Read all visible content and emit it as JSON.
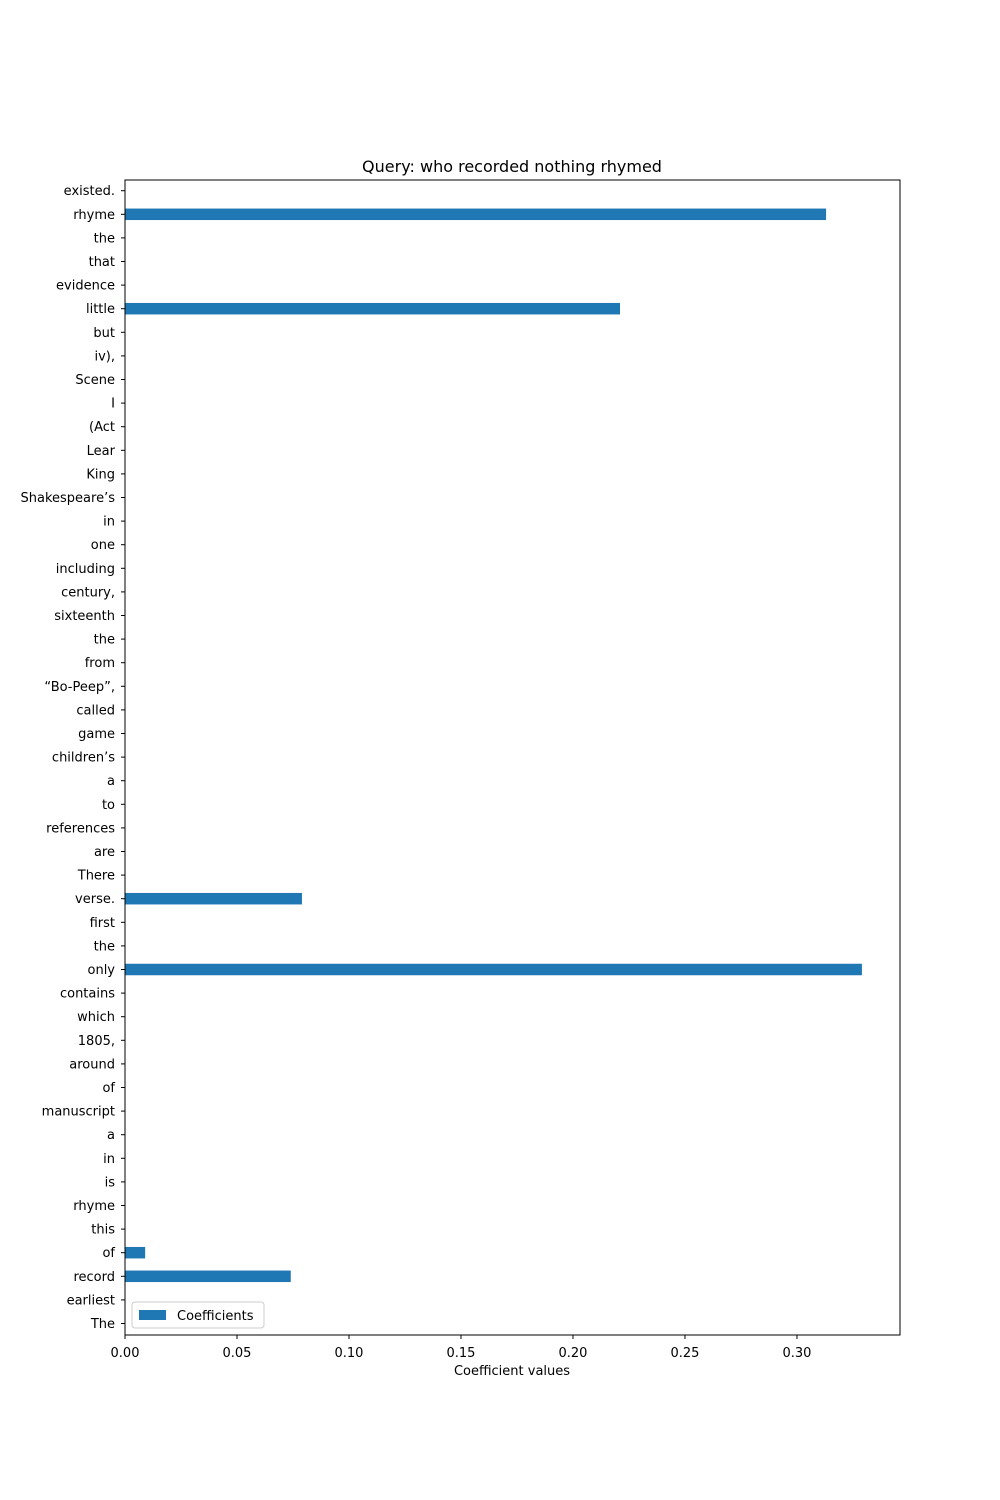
{
  "chart_data": {
    "type": "bar",
    "orientation": "horizontal",
    "title": "Query: who recorded nothing rhymed",
    "xlabel": "Coefficient values",
    "ylabel": "",
    "xlim": [
      0,
      0.346
    ],
    "xticks": [
      "0.00",
      "0.05",
      "0.10",
      "0.15",
      "0.20",
      "0.25",
      "0.30"
    ],
    "grid": false,
    "legend_position": "lower-left",
    "series": [
      {
        "name": "Coefficients",
        "color": "#1f77b4",
        "categories": [
          "The",
          "earliest",
          "record",
          "of",
          "this",
          "rhyme",
          "is",
          "in",
          "a",
          "manuscript",
          "of",
          "around",
          "1805,",
          "which",
          "contains",
          "only",
          "the",
          "first",
          "verse.",
          "There",
          "are",
          "references",
          "to",
          "a",
          "children’s",
          "game",
          "called",
          "“Bo-Peep”,",
          "from",
          "the",
          "sixteenth",
          "century,",
          "including",
          "one",
          "in",
          "Shakespeare’s",
          "King",
          "Lear",
          "(Act",
          "I",
          "Scene",
          "iv),",
          "but",
          "little",
          "evidence",
          "that",
          "the",
          "rhyme",
          "existed."
        ],
        "values": [
          0,
          0,
          0.074,
          0.009,
          0,
          0,
          0,
          0,
          0,
          0,
          0,
          0,
          0,
          0,
          0,
          0.329,
          0,
          0,
          0.079,
          0,
          0,
          0,
          0,
          0,
          0,
          0,
          0,
          0,
          0,
          0,
          0,
          0,
          0,
          0,
          0,
          0,
          0,
          0,
          0,
          0,
          0,
          0,
          0,
          0.221,
          0,
          0,
          0,
          0.313,
          0
        ]
      }
    ]
  }
}
